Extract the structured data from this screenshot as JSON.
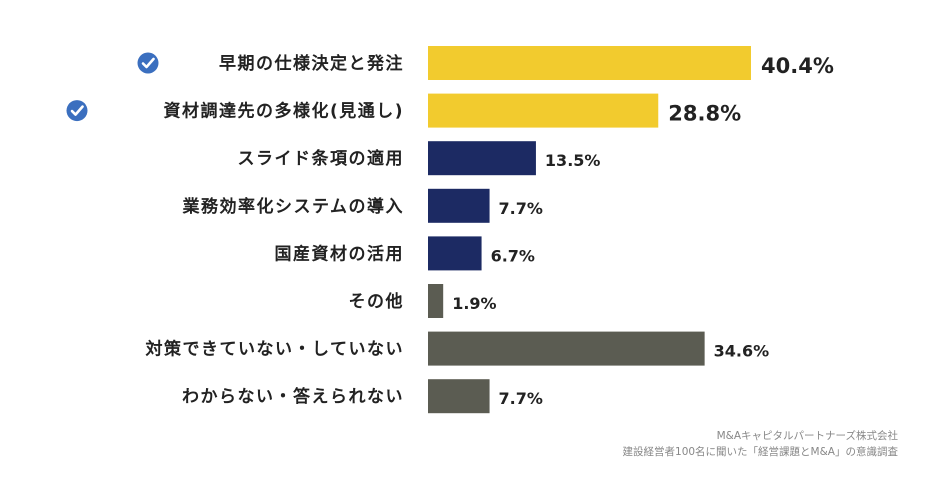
{
  "chart_data": {
    "type": "bar",
    "orientation": "horizontal",
    "categories": [
      "早期の仕様決定と発注",
      "資材調達先の多様化(見通し)",
      "スライド条項の適用",
      "業務効率化システムの導入",
      "国産資材の活用",
      "その他",
      "対策できていない・していない",
      "わからない・答えられない"
    ],
    "values": [
      40.4,
      28.8,
      13.5,
      7.7,
      6.7,
      1.9,
      34.6,
      7.7
    ],
    "value_labels": [
      "40.4%",
      "28.8%",
      "13.5%",
      "7.7%",
      "6.7%",
      "1.9%",
      "34.6%",
      "7.7%"
    ],
    "highlighted": [
      true,
      true,
      false,
      false,
      false,
      false,
      false,
      false
    ],
    "bar_colors": [
      "#f2cb2e",
      "#f2cb2e",
      "#1c2a63",
      "#1c2a63",
      "#1c2a63",
      "#5b5c52",
      "#5b5c52",
      "#5b5c52"
    ],
    "check_icon_color": "#3b6fbf",
    "check_icon": "check-circle-icon",
    "xlim": [
      0,
      40.4
    ],
    "grid": false,
    "title": "",
    "xlabel": "",
    "ylabel": ""
  },
  "source": {
    "line1": "M&Aキャピタルパートナーズ株式会社",
    "line2": "建設経営者100名に聞いた「経営課題とM&A」の意識調査"
  }
}
